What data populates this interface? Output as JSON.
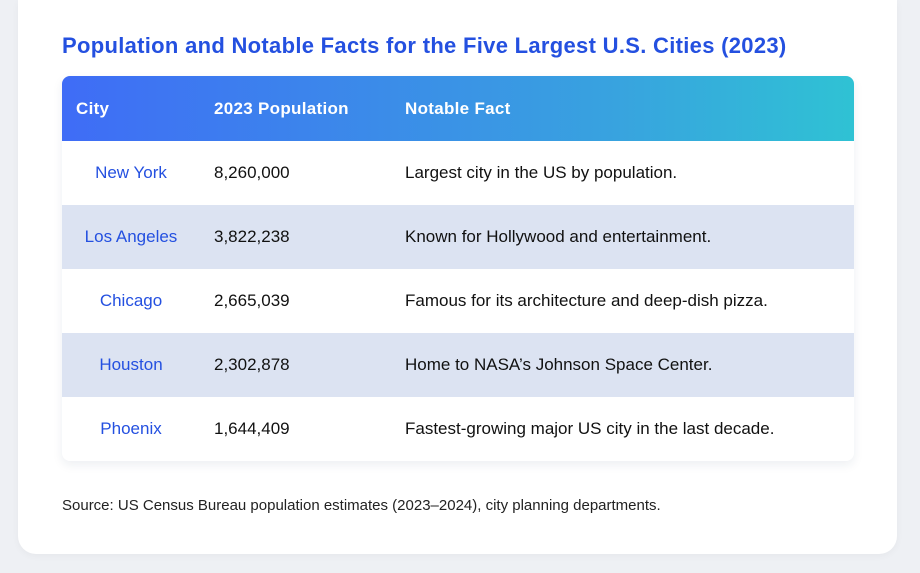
{
  "title": "Population and Notable Facts for the Five Largest U.S. Cities (2023)",
  "table": {
    "headers": [
      "City",
      "2023 Population",
      "Notable Fact"
    ],
    "rows": [
      {
        "city": "New York",
        "population": "8,260,000",
        "fact": "Largest city in the US by population."
      },
      {
        "city": "Los Angeles",
        "population": "3,822,238",
        "fact": "Known for Hollywood and entertainment."
      },
      {
        "city": "Chicago",
        "population": "2,665,039",
        "fact": "Famous for its architecture and deep-dish pizza."
      },
      {
        "city": "Houston",
        "population": "2,302,878",
        "fact": "Home to NASA’s Johnson Space Center."
      },
      {
        "city": "Phoenix",
        "population": "1,644,409",
        "fact": "Fastest-growing major US city in the last decade."
      }
    ]
  },
  "source": "Source: US Census Bureau population estimates (2023–2024), city planning departments.",
  "colors": {
    "title": "#2450e0",
    "city_link": "#2450e0",
    "header_gradient_start": "#3f6cf6",
    "header_gradient_end": "#2fc2d4",
    "alt_row": "#dce3f2"
  }
}
